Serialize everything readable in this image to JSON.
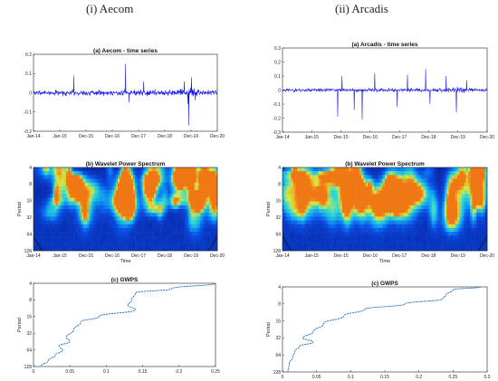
{
  "columns": [
    {
      "title": "(i) Aecom"
    },
    {
      "title": "(ii) Arcadis"
    }
  ],
  "chart_data": [
    {
      "type": "line",
      "title": "(a) Aecom - time series",
      "x_ticks": [
        "Jan-14",
        "Jan-15",
        "Dec-15",
        "Dec-16",
        "Dec-17",
        "Dec-18",
        "Dec-19",
        "Dec-20"
      ],
      "y_ticks": [
        "0.2",
        "0.1",
        "0",
        "-0.1",
        "-0.2"
      ],
      "ylim": [
        -0.2,
        0.2
      ],
      "color": "#1010ee",
      "spikes": [
        {
          "x": 0.22,
          "value": 0.09
        },
        {
          "x": 0.5,
          "value": 0.15
        },
        {
          "x": 0.52,
          "value": -0.05
        },
        {
          "x": 0.6,
          "value": 0.06
        },
        {
          "x": 0.82,
          "value": 0.06
        },
        {
          "x": 0.84,
          "value": -0.06
        },
        {
          "x": 0.845,
          "value": -0.17
        },
        {
          "x": 0.88,
          "value": -0.04
        },
        {
          "x": 0.86,
          "value": 0.08
        }
      ]
    },
    {
      "type": "heatmap",
      "title": "(b)  Wavelet Power Spectrum",
      "x_ticks": [
        "Jan-14",
        "Jan-15",
        "Dec-15",
        "Dec-16",
        "Dec-17",
        "Dec-18",
        "Dec-19",
        "Dec-20"
      ],
      "y_ticks": [
        "4",
        "8",
        "16",
        "32",
        "64",
        "128"
      ],
      "xlabel": "Time",
      "ylabel": "Period"
    },
    {
      "type": "line",
      "title": "(c)  GWPS",
      "x_ticks": [
        "0",
        "0.05",
        "0.1",
        "0.15",
        "0.2",
        "0.25"
      ],
      "y_ticks": [
        "4",
        "8",
        "16",
        "32",
        "64",
        "128"
      ],
      "xlim": [
        0,
        0.25
      ],
      "ylabel": "Period",
      "color": "#1a6fc0",
      "points": [
        {
          "period": 4,
          "value": 0.25
        },
        {
          "period": 5,
          "value": 0.19
        },
        {
          "period": 6,
          "value": 0.14
        },
        {
          "period": 8,
          "value": 0.135
        },
        {
          "period": 10,
          "value": 0.13
        },
        {
          "period": 12,
          "value": 0.14
        },
        {
          "period": 16,
          "value": 0.09
        },
        {
          "period": 20,
          "value": 0.065
        },
        {
          "period": 28,
          "value": 0.055
        },
        {
          "period": 38,
          "value": 0.045
        },
        {
          "period": 45,
          "value": 0.05
        },
        {
          "period": 55,
          "value": 0.035
        },
        {
          "period": 65,
          "value": 0.04
        },
        {
          "period": 80,
          "value": 0.03
        },
        {
          "period": 100,
          "value": 0.02
        },
        {
          "period": 128,
          "value": 0.01
        }
      ]
    },
    {
      "type": "line",
      "title": "(a) Arcadis - time series",
      "x_ticks": [
        "Jan-14",
        "Jan-15",
        "Dec-15",
        "Dec-16",
        "Dec-17",
        "Dec-18",
        "Dec-19",
        "Dec-20"
      ],
      "y_ticks": [
        "0.3",
        "0.2",
        "0.1",
        "0",
        "-0.1",
        "-0.2",
        "-0.3"
      ],
      "ylim": [
        -0.3,
        0.3
      ],
      "color": "#1010ee",
      "spikes": [
        {
          "x": 0.27,
          "value": -0.19
        },
        {
          "x": 0.29,
          "value": 0.1
        },
        {
          "x": 0.35,
          "value": -0.14
        },
        {
          "x": 0.39,
          "value": -0.21
        },
        {
          "x": 0.45,
          "value": 0.12
        },
        {
          "x": 0.56,
          "value": -0.12
        },
        {
          "x": 0.61,
          "value": 0.11
        },
        {
          "x": 0.7,
          "value": 0.15
        },
        {
          "x": 0.72,
          "value": -0.1
        },
        {
          "x": 0.8,
          "value": 0.1
        },
        {
          "x": 0.85,
          "value": -0.16
        },
        {
          "x": 0.9,
          "value": 0.07
        }
      ]
    },
    {
      "type": "heatmap",
      "title": "(b)  Wavelet Power Spectrum",
      "x_ticks": [
        "Jan-14",
        "Jan-15",
        "Dec-15",
        "Dec-16",
        "Dec-17",
        "Dec-18",
        "Dec-19",
        "Dec-20"
      ],
      "y_ticks": [
        "4",
        "8",
        "16",
        "32",
        "64",
        "128"
      ],
      "xlabel": "Time",
      "ylabel": "Period"
    },
    {
      "type": "line",
      "title": "(c)  GWPS",
      "x_ticks": [
        "0",
        "0.05",
        "0.1",
        "0.15",
        "0.2",
        "0.25",
        "0.3"
      ],
      "y_ticks": [
        "4",
        "8",
        "16",
        "32",
        "64",
        "128"
      ],
      "xlim": [
        0,
        0.3
      ],
      "ylabel": "Period",
      "color": "#1a6fc0",
      "points": [
        {
          "period": 4,
          "value": 0.29
        },
        {
          "period": 4.5,
          "value": 0.25
        },
        {
          "period": 5.5,
          "value": 0.24
        },
        {
          "period": 6.5,
          "value": 0.235
        },
        {
          "period": 8,
          "value": 0.18
        },
        {
          "period": 10,
          "value": 0.12
        },
        {
          "period": 13,
          "value": 0.09
        },
        {
          "period": 18,
          "value": 0.06
        },
        {
          "period": 25,
          "value": 0.045
        },
        {
          "period": 32,
          "value": 0.03
        },
        {
          "period": 38,
          "value": 0.045
        },
        {
          "period": 45,
          "value": 0.025
        },
        {
          "period": 55,
          "value": 0.018
        },
        {
          "period": 70,
          "value": 0.015
        },
        {
          "period": 90,
          "value": 0.01
        },
        {
          "period": 128,
          "value": 0.008
        }
      ]
    }
  ]
}
